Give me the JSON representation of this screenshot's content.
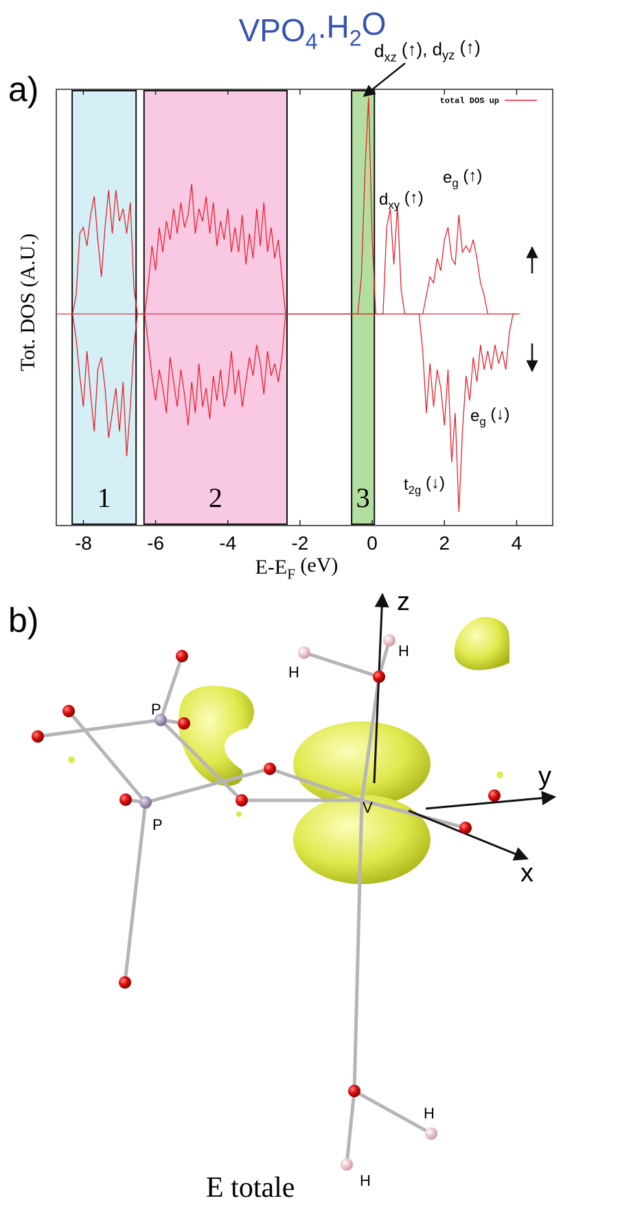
{
  "chart_data": {
    "type": "line",
    "title": {
      "parts": [
        {
          "text": "VPO"
        },
        {
          "text": "4",
          "sub": true
        },
        {
          "text": ".H"
        },
        {
          "text": "2",
          "sub": true
        },
        {
          "text": "O"
        }
      ]
    },
    "panel_label": "a)",
    "xlabel": {
      "parts": [
        {
          "text": "E-E"
        },
        {
          "text": "F",
          "sub": true
        },
        {
          "text": " (eV)"
        }
      ]
    },
    "ylabel": "Tot. DOS (A.U.)",
    "xlim": [
      -8.75,
      5
    ],
    "ylim": [
      -3.42,
      3.63
    ],
    "xticks": [
      -8,
      -6,
      -4,
      -2,
      0,
      2,
      4
    ],
    "x": [
      -8.3,
      -8.2,
      -8.1,
      -8.0,
      -7.9,
      -7.8,
      -7.7,
      -7.6,
      -7.5,
      -7.4,
      -7.3,
      -7.2,
      -7.1,
      -7.0,
      -6.9,
      -6.8,
      -6.7,
      -6.6,
      -6.5,
      -6.4,
      -6.3,
      -6.2,
      -6.1,
      -6.0,
      -5.9,
      -5.8,
      -5.7,
      -5.6,
      -5.5,
      -5.4,
      -5.3,
      -5.2,
      -5.1,
      -5.0,
      -4.9,
      -4.8,
      -4.7,
      -4.6,
      -4.5,
      -4.4,
      -4.3,
      -4.2,
      -4.1,
      -4.0,
      -3.9,
      -3.8,
      -3.7,
      -3.6,
      -3.5,
      -3.4,
      -3.3,
      -3.2,
      -3.1,
      -3.0,
      -2.9,
      -2.8,
      -2.7,
      -2.6,
      -2.5,
      -2.4,
      -2.3,
      -2.2,
      -2.1,
      -2.0,
      -1.9,
      -1.8,
      -1.7,
      -1.6,
      -1.5,
      -1.4,
      -1.3,
      -1.2,
      -1.1,
      -1.0,
      -0.9,
      -0.8,
      -0.7,
      -0.6,
      -0.5,
      -0.4,
      -0.3,
      -0.2,
      -0.1,
      0,
      0.1,
      0.2,
      0.3,
      0.4,
      0.5,
      0.6,
      0.7,
      0.8,
      0.9,
      1.0,
      1.1,
      1.2,
      1.3,
      1.4,
      1.5,
      1.6,
      1.7,
      1.8,
      1.9,
      2.0,
      2.1,
      2.2,
      2.3,
      2.4,
      2.5,
      2.6,
      2.7,
      2.8,
      2.9,
      3.0,
      3.1,
      3.2,
      3.3,
      3.4,
      3.5,
      3.6,
      3.7,
      3.8,
      3.9,
      4.0
    ],
    "series": [
      {
        "name": "total DOS up",
        "color": "#e8202a",
        "values": [
          0,
          0.3,
          1.3,
          1.4,
          1.1,
          1.6,
          1.9,
          1.2,
          0.6,
          1.4,
          2.0,
          1.3,
          2.0,
          1.5,
          1.7,
          1.3,
          1.8,
          0.4,
          0,
          0,
          0,
          0.5,
          1.1,
          0.7,
          1.4,
          1.0,
          1.5,
          1.2,
          1.7,
          1.3,
          1.8,
          1.4,
          1.6,
          2.1,
          1.3,
          1.7,
          1.5,
          1.9,
          1.3,
          1.8,
          1.1,
          1.5,
          1.2,
          1.7,
          1.0,
          1.4,
          1.0,
          1.6,
          0.8,
          1.3,
          0.9,
          1.7,
          1.1,
          1.8,
          1.0,
          1.4,
          0.9,
          1.2,
          0.6,
          0,
          0,
          0,
          0,
          0,
          0,
          0,
          0,
          0,
          0,
          0,
          0,
          0,
          0,
          0,
          0,
          0,
          0,
          0,
          0,
          0,
          0.6,
          2.3,
          3.5,
          1.2,
          0,
          0,
          0,
          1.4,
          1.7,
          0.8,
          1.75,
          0.4,
          0,
          0,
          0,
          0,
          0,
          0,
          0.3,
          0.6,
          0.5,
          0.9,
          0.7,
          1.2,
          1.4,
          0.9,
          0.8,
          1.6,
          1.0,
          1.1,
          1.0,
          1.2,
          0.9,
          0.5,
          0.3,
          0,
          0,
          0,
          0,
          0,
          0,
          0,
          0,
          0
        ]
      },
      {
        "color": "#e8202a",
        "values": [
          0,
          -0.4,
          -1.0,
          -1.5,
          -0.6,
          -1.3,
          -1.9,
          -0.9,
          -0.7,
          -1.2,
          -2.0,
          -1.6,
          -1.2,
          -1.9,
          -1.1,
          -2.3,
          -1.5,
          -0.5,
          0,
          0,
          0,
          -0.5,
          -1.0,
          -1.4,
          -0.9,
          -1.2,
          -1.6,
          -0.7,
          -1.1,
          -1.5,
          -0.9,
          -1.3,
          -1.8,
          -1.1,
          -1.6,
          -0.8,
          -1.5,
          -1.2,
          -1.7,
          -1.0,
          -1.4,
          -0.9,
          -1.5,
          -1.2,
          -0.6,
          -1.3,
          -0.9,
          -1.5,
          -1.1,
          -0.7,
          -1.0,
          -0.5,
          -0.8,
          -1.3,
          -0.6,
          -1.0,
          -0.8,
          -1.1,
          -0.7,
          0,
          0,
          0,
          0,
          0,
          0,
          0,
          0,
          0,
          0,
          0,
          0,
          0,
          0,
          0,
          0,
          0,
          0,
          0,
          0,
          0,
          0,
          0,
          0,
          0,
          0,
          0,
          0,
          0,
          0,
          0,
          0,
          0,
          0,
          0,
          0,
          0,
          0,
          -0.6,
          -1.6,
          -0.8,
          -1.5,
          -0.9,
          -1.2,
          -1.8,
          -0.9,
          -2.4,
          -1.6,
          -3.2,
          -1.9,
          -1.0,
          -1.4,
          -0.7,
          -1.1,
          -0.5,
          -0.9,
          -0.6,
          -0.9,
          -0.5,
          -0.8,
          -0.6,
          -0.9,
          -0.3,
          0,
          0
        ]
      }
    ],
    "legend": "top-right",
    "regions": [
      {
        "label": "1",
        "x": [
          -8.31,
          -6.54
        ],
        "color": "#d4eff5"
      },
      {
        "label": "2",
        "x": [
          -6.32,
          -2.36
        ],
        "color": "#f9c9e4"
      },
      {
        "label": "3",
        "x": [
          -0.57,
          0.06
        ],
        "color": "#b2dfa0"
      }
    ],
    "annotations": [
      {
        "parts": [
          {
            "text": "d"
          },
          {
            "text": "xz",
            "sub": true
          },
          {
            "text": " (↑), d"
          },
          {
            "text": "yz",
            "sub": true
          },
          {
            "text": " (↑)"
          }
        ]
      },
      {
        "parts": [
          {
            "text": "d"
          },
          {
            "text": "xy",
            "sub": true
          },
          {
            "text": " (↑)"
          }
        ]
      },
      {
        "parts": [
          {
            "text": "e"
          },
          {
            "text": "g",
            "sub": true
          },
          {
            "text": " (↑)"
          }
        ]
      },
      {
        "parts": [
          {
            "text": "e"
          },
          {
            "text": "g",
            "sub": true
          },
          {
            "text": " (↓)"
          }
        ]
      },
      {
        "parts": [
          {
            "text": "t"
          },
          {
            "text": "2g",
            "sub": true
          },
          {
            "text": " (↓)"
          }
        ]
      }
    ]
  },
  "panel_b": {
    "label": "b)",
    "caption": "E totale",
    "atom_labels": [
      "P",
      "P",
      "V",
      "H",
      "H",
      "H",
      "H"
    ],
    "axis_labels": [
      "z",
      "y",
      "x"
    ]
  }
}
